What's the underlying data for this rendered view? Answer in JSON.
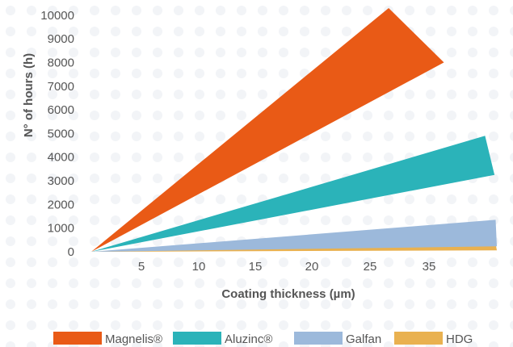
{
  "chart_data": {
    "type": "area",
    "xlabel": "Coating thickness (µm)",
    "ylabel": "N° of hours (h)",
    "xlim": [
      0,
      38
    ],
    "ylim": [
      0,
      10000
    ],
    "x_ticks": [
      "5",
      "10",
      "15",
      "20",
      "25",
      "35"
    ],
    "y_ticks": [
      "0",
      "1000",
      "2000",
      "3000",
      "4000",
      "5000",
      "6000",
      "7000",
      "8000",
      "9000",
      "10000"
    ],
    "grid": false,
    "legend_position": "bottom",
    "series": [
      {
        "name": "Magnelis®",
        "color": "#E95A16",
        "polygon": [
          [
            0,
            0
          ],
          [
            25.3,
            10300
          ],
          [
            30,
            8000
          ]
        ]
      },
      {
        "name": "Aluzinc®",
        "color": "#2BB3B9",
        "polygon": [
          [
            0,
            0
          ],
          [
            33.5,
            4900
          ],
          [
            34.3,
            3250
          ]
        ]
      },
      {
        "name": "Galfan",
        "color": "#9CB9DB",
        "polygon": [
          [
            0,
            0
          ],
          [
            34.4,
            1350
          ],
          [
            34.5,
            230
          ]
        ]
      },
      {
        "name": "HDG",
        "color": "#E9B150",
        "polygon": [
          [
            0,
            0
          ],
          [
            34.4,
            330
          ],
          [
            34.5,
            60
          ]
        ]
      }
    ]
  }
}
